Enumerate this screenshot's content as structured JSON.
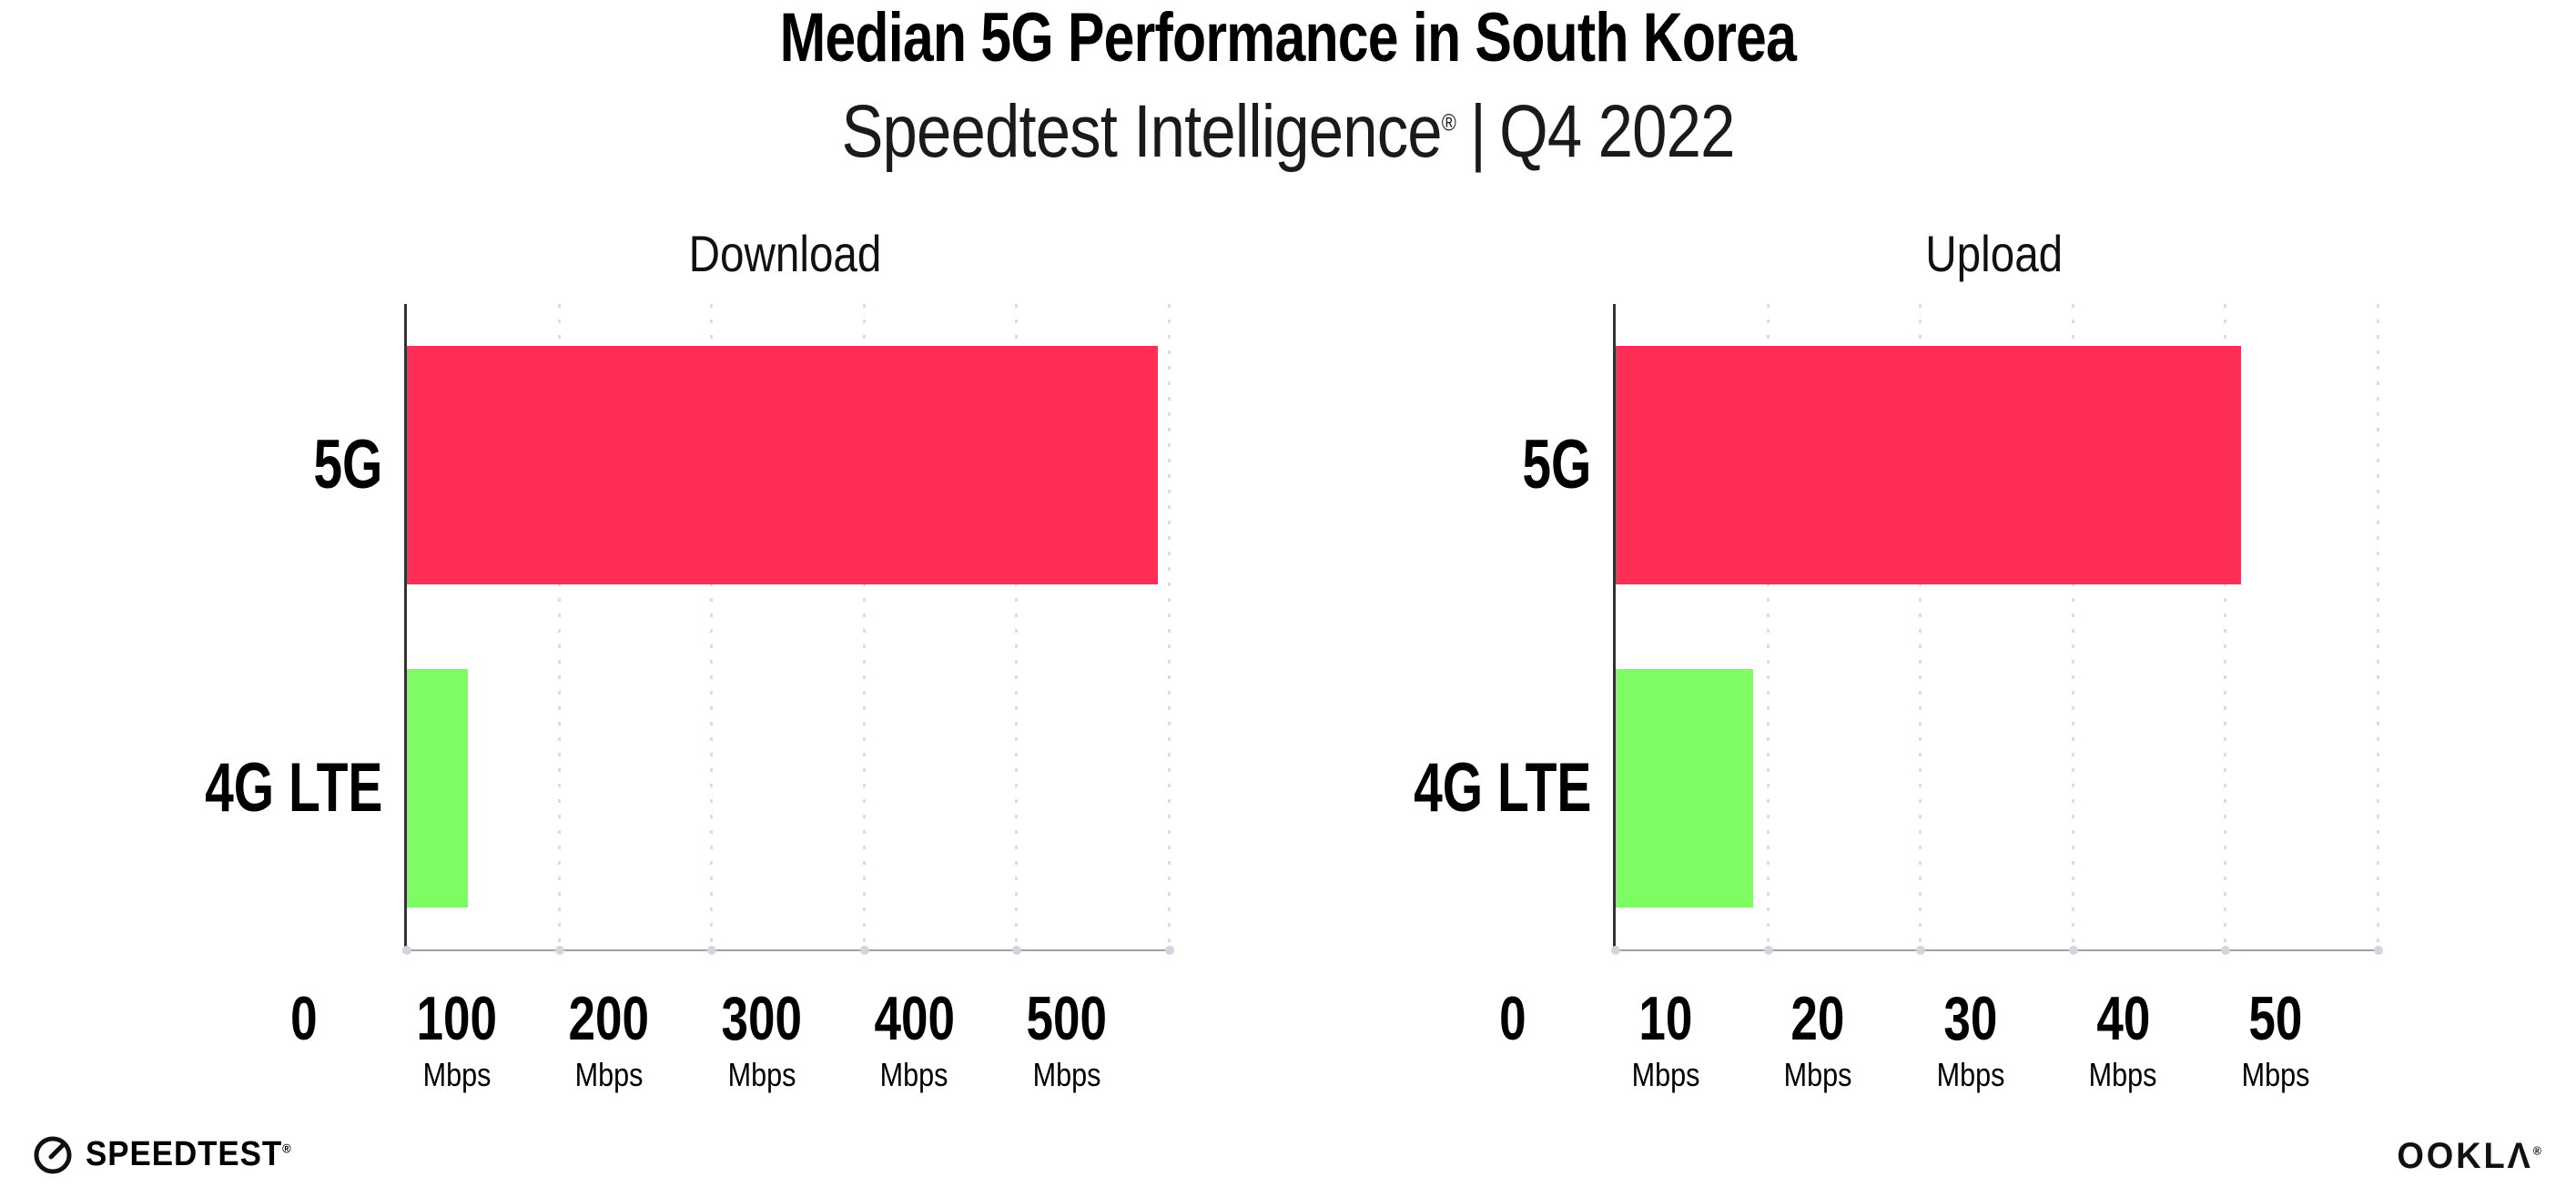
{
  "page": {
    "title": "Median 5G Performance in South Korea",
    "subtitle_brand": "Speedtest Intelligence",
    "subtitle_reg": "®",
    "subtitle_sep": "|",
    "subtitle_period": "Q4 2022"
  },
  "footer": {
    "speedtest": "SPEEDTEST",
    "speedtest_reg": "®",
    "ookla": "OOKLΛ",
    "ookla_reg": "®"
  },
  "colors": {
    "bar_5g": "#ff2e57",
    "bar_4g_lte": "#7ffc64",
    "y_axis": "#333333",
    "x_axis": "#a0a0a8",
    "gridline": "#dcdce6",
    "tick_dot": "#d4d4e0",
    "text": "#000000",
    "background": "#ffffff"
  },
  "chart_data": [
    {
      "type": "bar",
      "orientation": "horizontal",
      "title": "Download",
      "categories": [
        "5G",
        "4G LTE"
      ],
      "values": [
        492,
        40
      ],
      "unit": "Mbps",
      "xlim": [
        0,
        500
      ],
      "xticks": [
        0,
        100,
        200,
        300,
        400,
        500
      ],
      "bar_colors": [
        "#ff2e57",
        "#7ffc64"
      ],
      "grid": "vertical-dotted",
      "legend": "none"
    },
    {
      "type": "bar",
      "orientation": "horizontal",
      "title": "Upload",
      "categories": [
        "5G",
        "4G LTE"
      ],
      "values": [
        41,
        9
      ],
      "unit": "Mbps",
      "xlim": [
        0,
        50
      ],
      "xticks": [
        0,
        10,
        20,
        30,
        40,
        50
      ],
      "bar_colors": [
        "#ff2e57",
        "#7ffc64"
      ],
      "grid": "vertical-dotted",
      "legend": "none"
    }
  ]
}
